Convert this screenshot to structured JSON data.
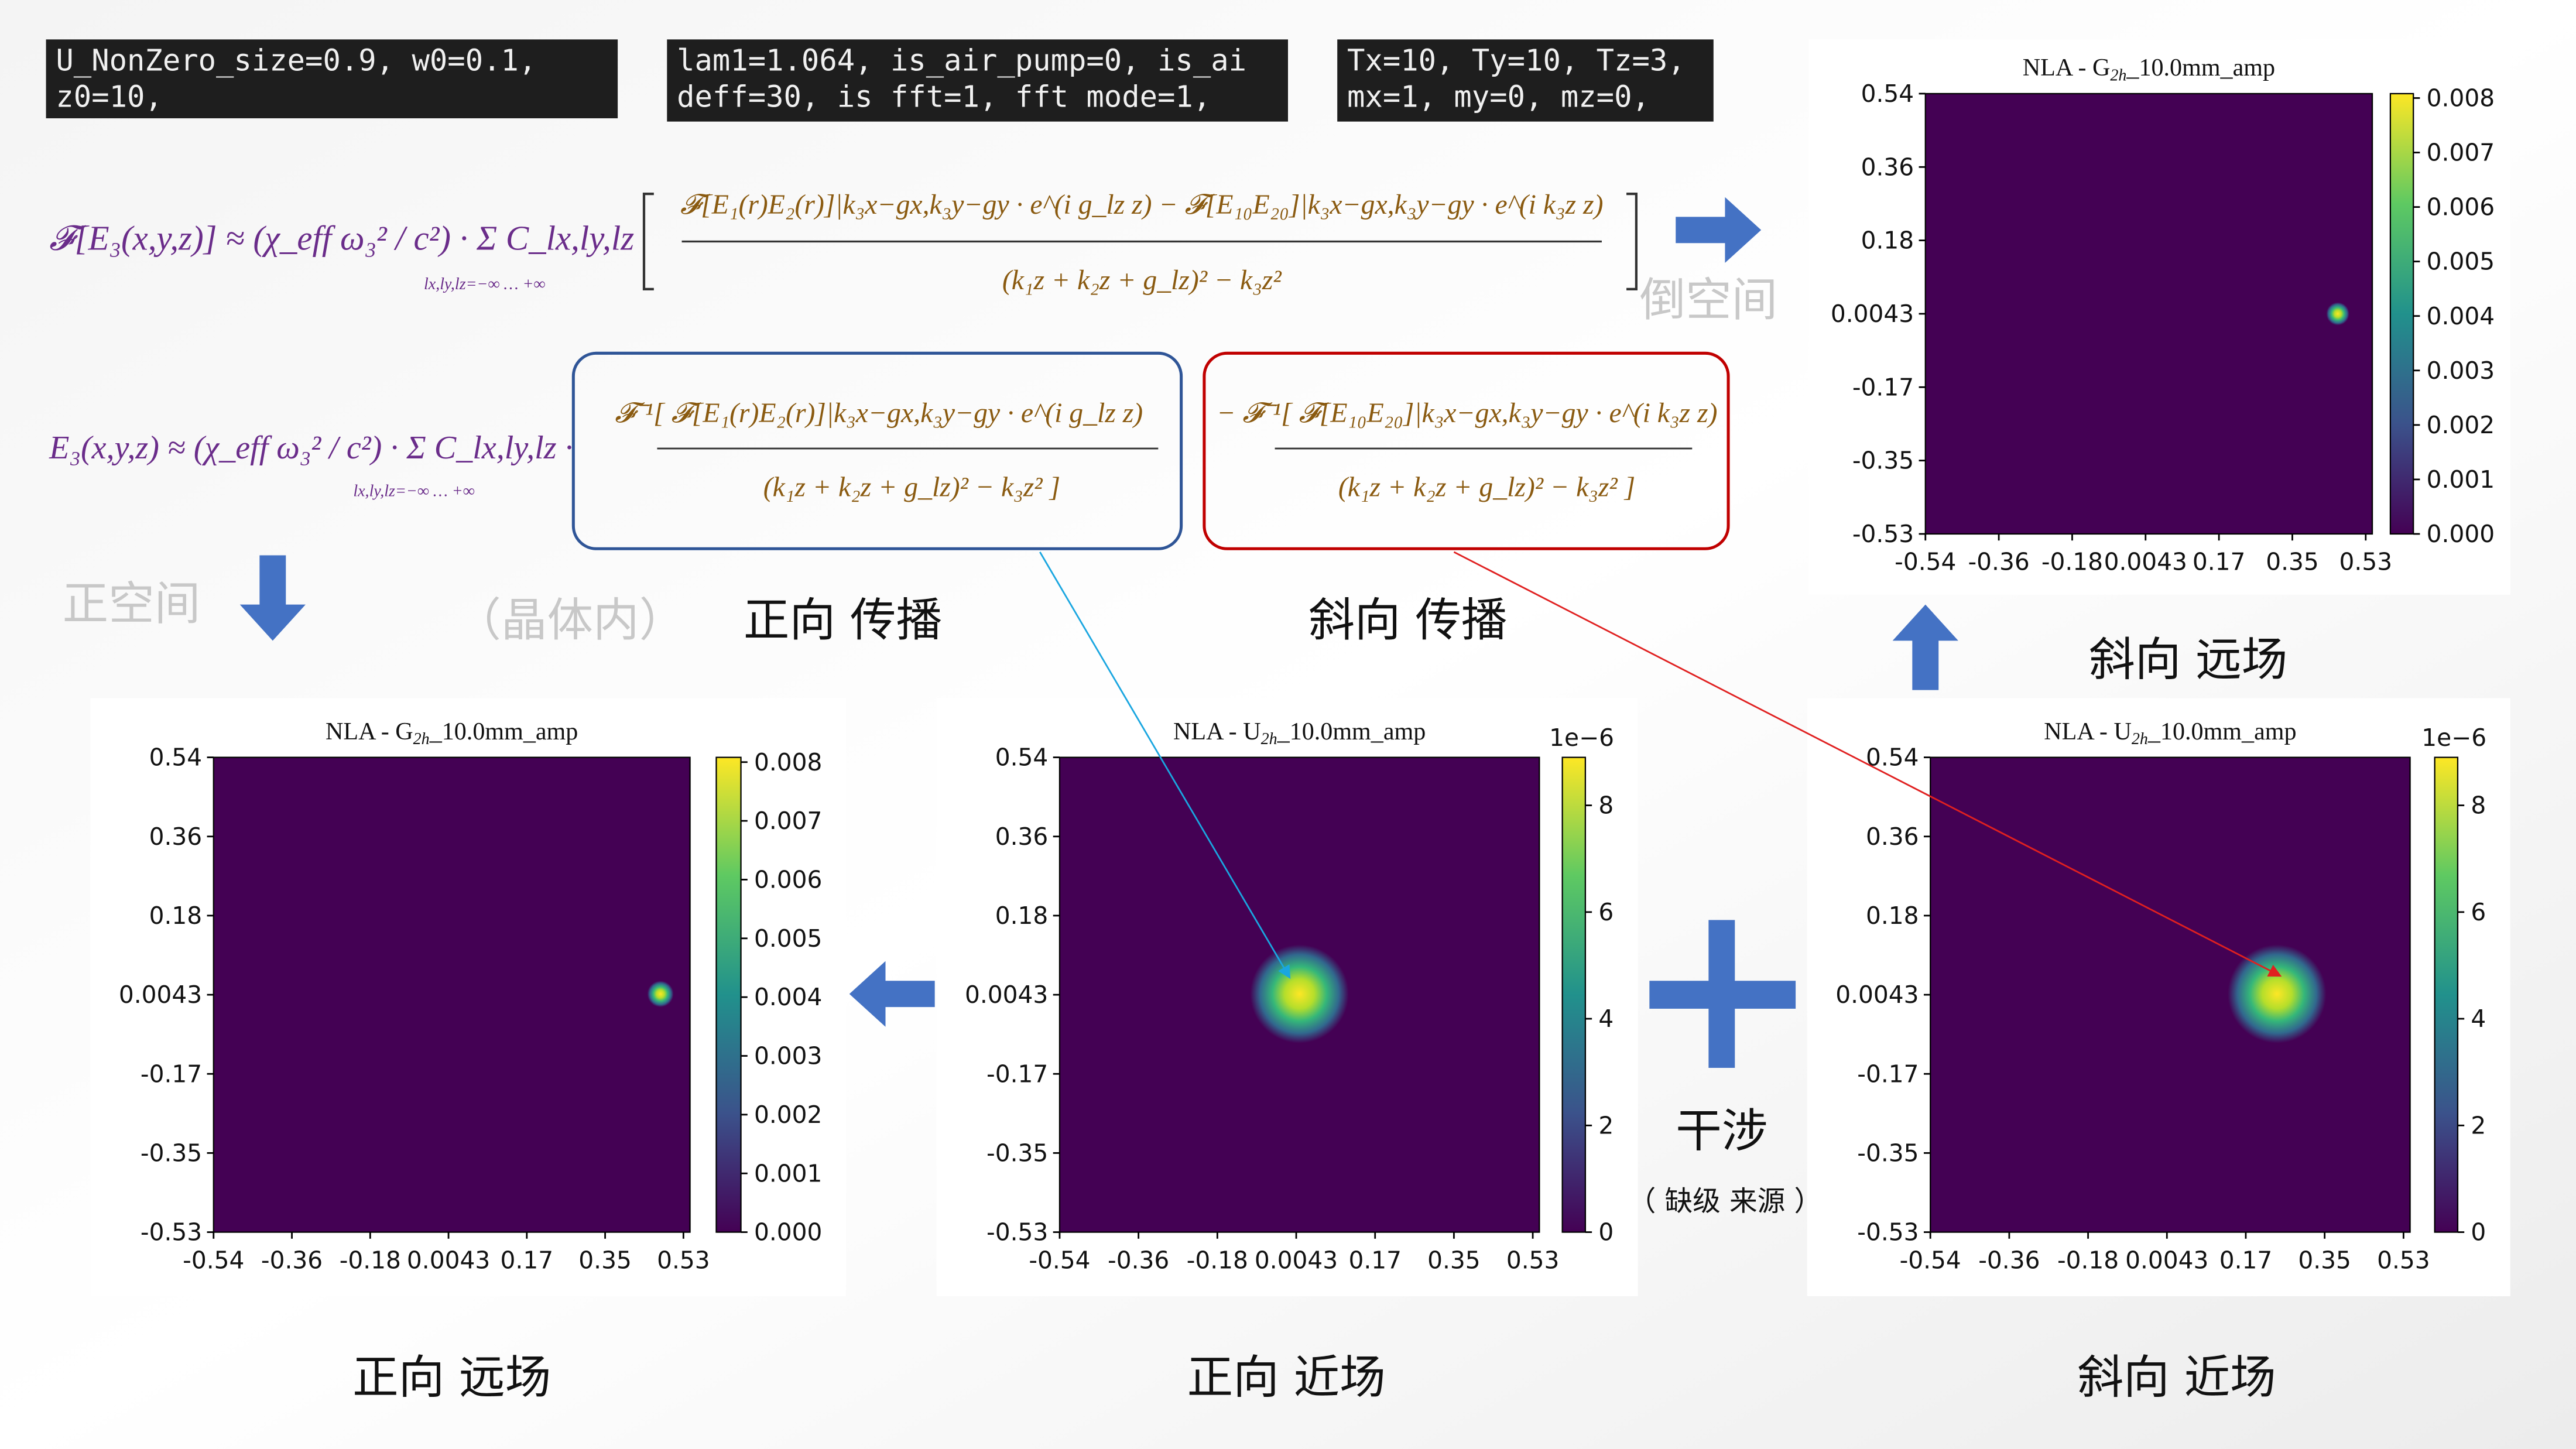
{
  "code_boxes": [
    [
      "U_NonZero_size=0.9, w0=0.1,",
      "z0=10,"
    ],
    [
      "lam1=1.064, is_air_pump=0, is_ai",
      "deff=30, is fft=1, fft mode=1,"
    ],
    [
      "Tx=10, Ty=10, Tz=3,",
      "mx=1, my=0, mz=0,"
    ]
  ],
  "formulas": {
    "reciprocal": {
      "lhs": "𝓕[E₃(x,y,z)] ≈ (χ_eff ω₃² / c²) · Σ C_lx,ly,lz",
      "sum_range": "lx,ly,lz=−∞ … +∞",
      "numerator": "𝓕[E₁(r)E₂(r)]|k₃x−gx,k₃y−gy · e^(i g_lz z) − 𝓕[E₁₀E₂₀]|k₃x−gx,k₃y−gy · e^(i k₃z z)",
      "denominator": "(k₁z + k₂z + g_lz)² − k₃z²"
    },
    "real": {
      "lhs": "E₃(x,y,z) ≈ (χ_eff ω₃² / c²) · Σ C_lx,ly,lz ·",
      "sum_range": "lx,ly,lz=−∞ … +∞",
      "forward_numerator": "𝓕⁻¹[ 𝓕[E₁(r)E₂(r)]|k₃x−gx,k₃y−gy · e^(i g_lz z)",
      "forward_denominator": "(k₁z + k₂z + g_lz)² − k₃z² ]",
      "oblique_numerator": "− 𝓕⁻¹[ 𝓕[E₁₀E₂₀]|k₃x−gx,k₃y−gy · e^(i k₃z z)",
      "oblique_denominator": "(k₁z + k₂z + g_lz)² − k₃z² ]"
    }
  },
  "labels": {
    "reciprocal_space": "倒空间",
    "real_space": "正空间",
    "in_crystal": "（晶体内）",
    "forward_propagation": "正向 传播",
    "oblique_propagation": "斜向 传播",
    "oblique_far_field": "斜向 远场",
    "forward_far_field": "正向 远场",
    "forward_near_field": "正向 近场",
    "oblique_near_field": "斜向 近场",
    "interference": "干涉",
    "missing_order_source": "（ 缺级 来源 ）"
  },
  "plots": [
    {
      "title": [
        "NLA - G",
        "2h",
        "_10.0mm_amp"
      ],
      "yticks": [
        "0.54",
        "0.36",
        "0.18",
        "0.0043",
        "-0.17",
        "-0.35",
        "-0.53"
      ],
      "xticks": [
        "-0.54",
        "-0.36",
        "-0.18",
        "0.0043",
        "0.17",
        "0.35",
        "0.53"
      ],
      "colorbar_ticks": [
        "0.000",
        "0.001",
        "0.002",
        "0.003",
        "0.004",
        "0.005",
        "0.006",
        "0.007",
        "0.008"
      ]
    },
    {
      "title": [
        "NLA - G",
        "2h",
        "_10.0mm_amp"
      ],
      "yticks": [
        "0.54",
        "0.36",
        "0.18",
        "0.0043",
        "-0.17",
        "-0.35",
        "-0.53"
      ],
      "xticks": [
        "-0.54",
        "-0.36",
        "-0.18",
        "0.0043",
        "0.17",
        "0.35",
        "0.53"
      ],
      "colorbar_ticks": [
        "0.000",
        "0.001",
        "0.002",
        "0.003",
        "0.004",
        "0.005",
        "0.006",
        "0.007",
        "0.008"
      ]
    },
    {
      "title": [
        "NLA - U",
        "2h",
        "_10.0mm_amp"
      ],
      "yticks": [
        "0.54",
        "0.36",
        "0.18",
        "0.0043",
        "-0.17",
        "-0.35",
        "-0.53"
      ],
      "xticks": [
        "-0.54",
        "-0.36",
        "-0.18",
        "0.0043",
        "0.17",
        "0.35",
        "0.53"
      ],
      "colorbar_ticks": [
        "0",
        "2",
        "4",
        "6",
        "8"
      ],
      "colorbar_scale": "1e−6"
    },
    {
      "title": [
        "NLA - U",
        "2h",
        "_10.0mm_amp"
      ],
      "yticks": [
        "0.54",
        "0.36",
        "0.18",
        "0.0043",
        "-0.17",
        "-0.35",
        "-0.53"
      ],
      "xticks": [
        "-0.54",
        "-0.36",
        "-0.18",
        "0.0043",
        "0.17",
        "0.35",
        "0.53"
      ],
      "colorbar_ticks": [
        "0",
        "2",
        "4",
        "6",
        "8"
      ],
      "colorbar_scale": "1e−6"
    }
  ]
}
